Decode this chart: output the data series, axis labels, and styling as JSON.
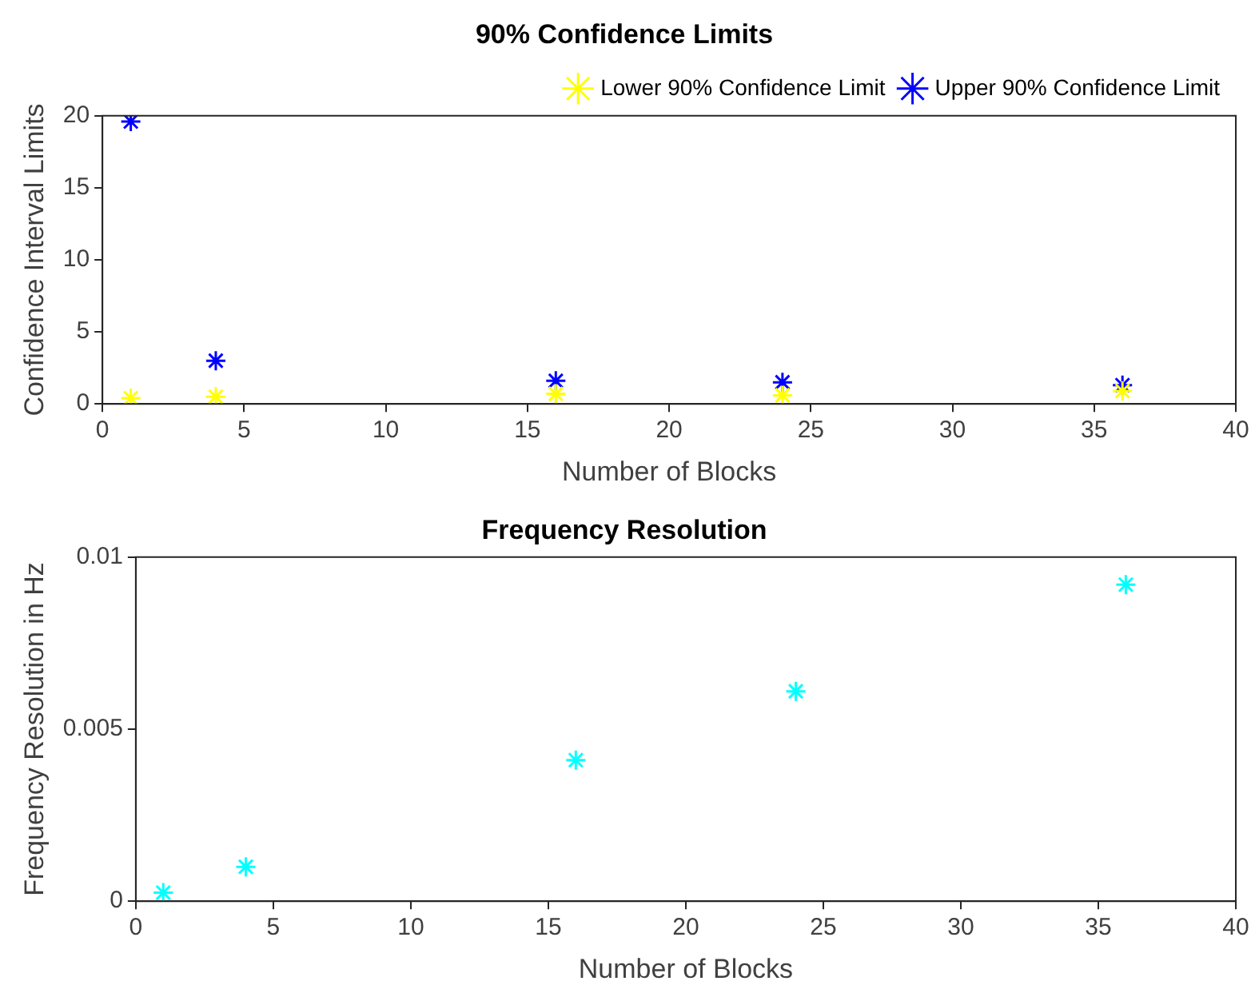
{
  "chart_data": [
    {
      "type": "scatter",
      "title": "90% Confidence Limits",
      "xlabel": "Number of Blocks",
      "ylabel": "Confidence Interval Limits",
      "x": [
        1,
        4,
        16,
        24,
        36
      ],
      "series": [
        {
          "name": "Lower 90% Confidence Limit",
          "color": "#ffff00",
          "values": [
            0.4,
            0.5,
            0.7,
            0.6,
            0.9
          ]
        },
        {
          "name": "Upper 90% Confidence Limit",
          "color": "#0000ff",
          "values": [
            19.6,
            3.0,
            1.6,
            1.5,
            1.3
          ]
        }
      ],
      "xlim": [
        0,
        40
      ],
      "xticks": [
        0,
        5,
        10,
        15,
        20,
        25,
        30,
        35,
        40
      ],
      "ylim": [
        0,
        20
      ],
      "yticks": [
        0,
        5,
        10,
        15,
        20
      ],
      "marker": "cross",
      "legend": "top right",
      "grid": false
    },
    {
      "type": "scatter",
      "title": "Frequency Resolution",
      "xlabel": "Number of Blocks",
      "ylabel": "Frequency Resolution in Hz",
      "x": [
        1,
        4,
        16,
        24,
        36
      ],
      "series": [
        {
          "color": "#00ffff",
          "values": [
            0.00025,
            0.001,
            0.0041,
            0.0061,
            0.0092
          ]
        }
      ],
      "xlim": [
        0,
        40
      ],
      "xticks": [
        0,
        5,
        10,
        15,
        20,
        25,
        30,
        35,
        40
      ],
      "ylim": [
        0,
        0.01
      ],
      "yticks": [
        0,
        0.005,
        0.01
      ],
      "marker": "cross",
      "grid": false
    }
  ]
}
